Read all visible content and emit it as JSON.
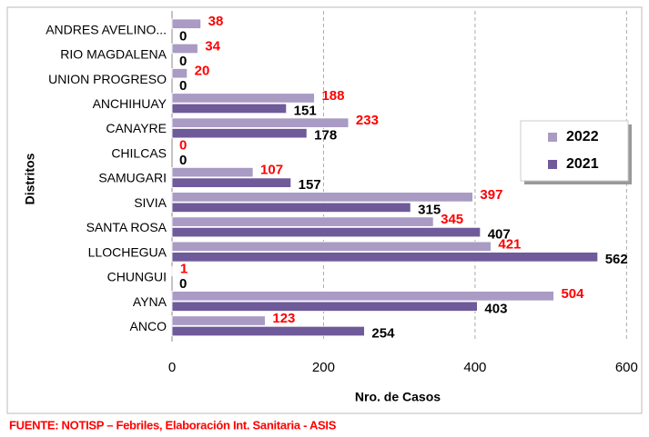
{
  "chart_data": {
    "type": "barh",
    "categories": [
      "ANDRES AVELINO...",
      "RIO MAGDALENA",
      "UNION PROGRESO",
      "ANCHIHUAY",
      "CANAYRE",
      "CHILCAS",
      "SAMUGARI",
      "SIVIA",
      "SANTA ROSA",
      "LLOCHEGUA",
      "CHUNGUI",
      "AYNA",
      "ANCO"
    ],
    "series": [
      {
        "name": "2022",
        "color": "#a99bc4",
        "label_color": "#ff0000",
        "values": [
          38,
          34,
          20,
          188,
          233,
          0,
          107,
          397,
          345,
          421,
          1,
          504,
          123
        ]
      },
      {
        "name": "2021",
        "color": "#6f5a9a",
        "label_color": "#000000",
        "values": [
          0,
          0,
          0,
          151,
          178,
          0,
          157,
          315,
          407,
          562,
          0,
          403,
          254
        ]
      }
    ],
    "xlim": [
      0,
      620
    ],
    "xticks": [
      0,
      200,
      400,
      600
    ],
    "grid": true,
    "xlabel": "Nro. de Casos",
    "ylabel": "Distritos",
    "source": "FUENTE:  NOTISP – Febriles, Elaboración Int. Sanitaria - ASIS",
    "legend": "right"
  }
}
